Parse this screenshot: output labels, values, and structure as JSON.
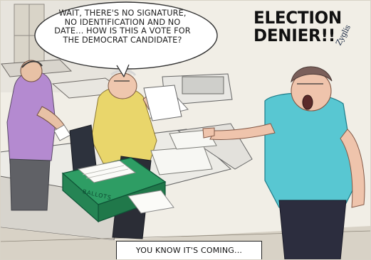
{
  "speech_bubble": {
    "text": "WAIT, THERE'S NO SIGNATURE,\nNO IDENTIFICATION AND NO\nDATE… HOW IS THIS A VOTE FOR\nTHE DEMOCRAT CANDIDATE?"
  },
  "exclamation": {
    "text": "ELECTION\nDENIER!!"
  },
  "signature": {
    "text": "Zyglis"
  },
  "caption": {
    "text": "YOU KNOW IT'S COMING..."
  },
  "ballot_box": {
    "label": "BALLOTS"
  },
  "colors": {
    "teal_shirt": "#58c7d2",
    "yellow_shirt": "#e9d66b",
    "purple_shirt": "#b48ad0",
    "green_box": "#2e9d64",
    "dark_pants": "#2c2d3e"
  }
}
